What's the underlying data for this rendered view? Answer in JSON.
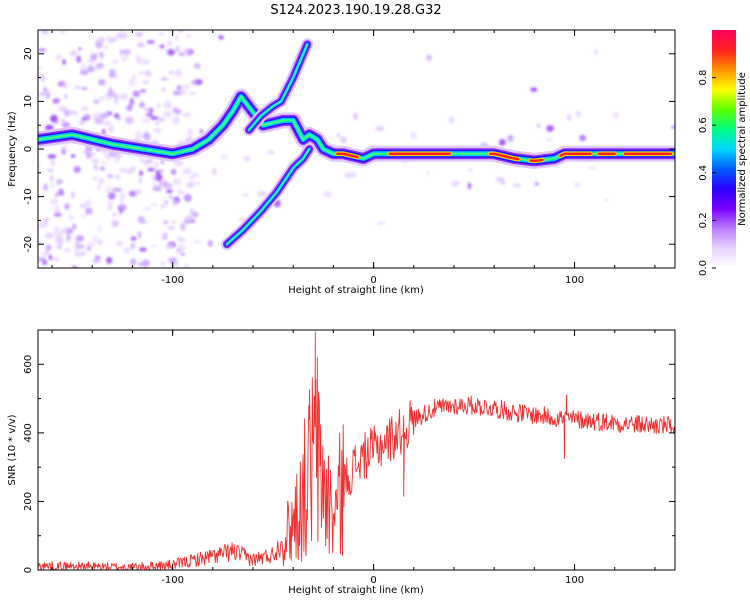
{
  "title": "S124.2023.190.19.28.G32",
  "chart_data": [
    {
      "type": "heatmap",
      "xlabel": "Height of straight line (km)",
      "ylabel": "Frequency (Hz)",
      "xlim": [
        -167,
        150
      ],
      "ylim": [
        -25,
        25
      ],
      "xticks": [
        -100,
        0,
        100
      ],
      "yticks": [
        -20,
        -10,
        0,
        10,
        20
      ],
      "colorbar": {
        "label": "Normalized spectral amplitude",
        "range": [
          0,
          1
        ],
        "ticks": [
          0.0,
          0.2,
          0.4,
          0.6,
          0.8
        ],
        "tick_labels": [
          "0.0",
          "0.2",
          "0.4",
          "0.6",
          "0.8"
        ],
        "colors": [
          "#ffffff",
          "#e8d2ff",
          "#b87aff",
          "#7a00ff",
          "#2a00ff",
          "#0060ff",
          "#00d8ff",
          "#00ff80",
          "#60ff00",
          "#ffff00",
          "#ff9000",
          "#ff2020",
          "#ff0060"
        ]
      },
      "main_line": [
        [
          -167,
          2
        ],
        [
          -150,
          3
        ],
        [
          -130,
          1
        ],
        [
          -115,
          0
        ],
        [
          -100,
          -1
        ],
        [
          -90,
          0
        ],
        [
          -82,
          2
        ],
        [
          -75,
          5
        ],
        [
          -70,
          8
        ],
        [
          -66,
          11
        ],
        [
          -55,
          5
        ],
        [
          -45,
          6
        ],
        [
          -40,
          6
        ],
        [
          -35,
          2
        ],
        [
          -32,
          3
        ],
        [
          -28,
          2
        ],
        [
          -25,
          0
        ],
        [
          -20,
          -1
        ],
        [
          -15,
          -1
        ],
        [
          -5,
          -2
        ],
        [
          0,
          -1
        ],
        [
          5,
          -1
        ],
        [
          20,
          -1
        ],
        [
          40,
          -1
        ],
        [
          60,
          -1
        ],
        [
          70,
          -2
        ],
        [
          80,
          -2.5
        ],
        [
          90,
          -2
        ],
        [
          95,
          -1
        ],
        [
          110,
          -1
        ],
        [
          120,
          -1
        ],
        [
          135,
          -1
        ],
        [
          150,
          -1
        ]
      ],
      "branches": [
        [
          [
            -62,
            4
          ],
          [
            -56,
            7
          ],
          [
            -50,
            9
          ],
          [
            -46,
            10
          ],
          [
            -40,
            15
          ],
          [
            -35,
            20
          ],
          [
            -33,
            22
          ]
        ],
        [
          [
            -73,
            -20
          ],
          [
            -65,
            -17
          ],
          [
            -56,
            -13
          ],
          [
            -48,
            -9
          ],
          [
            -40,
            -4
          ],
          [
            -35,
            -2
          ],
          [
            -32,
            0
          ]
        ]
      ]
    },
    {
      "type": "line",
      "xlabel": "Height of straight line (km)",
      "ylabel": "SNR (10 * v/v)",
      "xlim": [
        -167,
        150
      ],
      "ylim": [
        0,
        700
      ],
      "xticks": [
        -100,
        0,
        100
      ],
      "yticks": [
        0,
        200,
        400,
        600
      ],
      "color": "#f03030",
      "envelope": [
        [
          -167,
          12
        ],
        [
          -140,
          10
        ],
        [
          -120,
          8
        ],
        [
          -100,
          15
        ],
        [
          -90,
          28
        ],
        [
          -80,
          40
        ],
        [
          -70,
          55
        ],
        [
          -60,
          30
        ],
        [
          -50,
          45
        ],
        [
          -45,
          85
        ],
        [
          -40,
          140
        ],
        [
          -35,
          220
        ],
        [
          -30,
          340
        ],
        [
          -25,
          250
        ],
        [
          -20,
          150
        ],
        [
          -15,
          250
        ],
        [
          -10,
          300
        ],
        [
          -5,
          330
        ],
        [
          0,
          350
        ],
        [
          5,
          370
        ],
        [
          10,
          390
        ],
        [
          15,
          410
        ],
        [
          20,
          440
        ],
        [
          30,
          470
        ],
        [
          40,
          480
        ],
        [
          50,
          480
        ],
        [
          60,
          472
        ],
        [
          70,
          460
        ],
        [
          80,
          452
        ],
        [
          90,
          445
        ],
        [
          100,
          440
        ],
        [
          110,
          435
        ],
        [
          120,
          430
        ],
        [
          130,
          425
        ],
        [
          140,
          422
        ],
        [
          150,
          420
        ]
      ],
      "spikes": [
        [
          -29,
          695
        ],
        [
          -28,
          620
        ],
        [
          -29,
          520
        ],
        [
          -32,
          440
        ],
        [
          15,
          215
        ],
        [
          95,
          325
        ],
        [
          96,
          510
        ]
      ]
    }
  ]
}
